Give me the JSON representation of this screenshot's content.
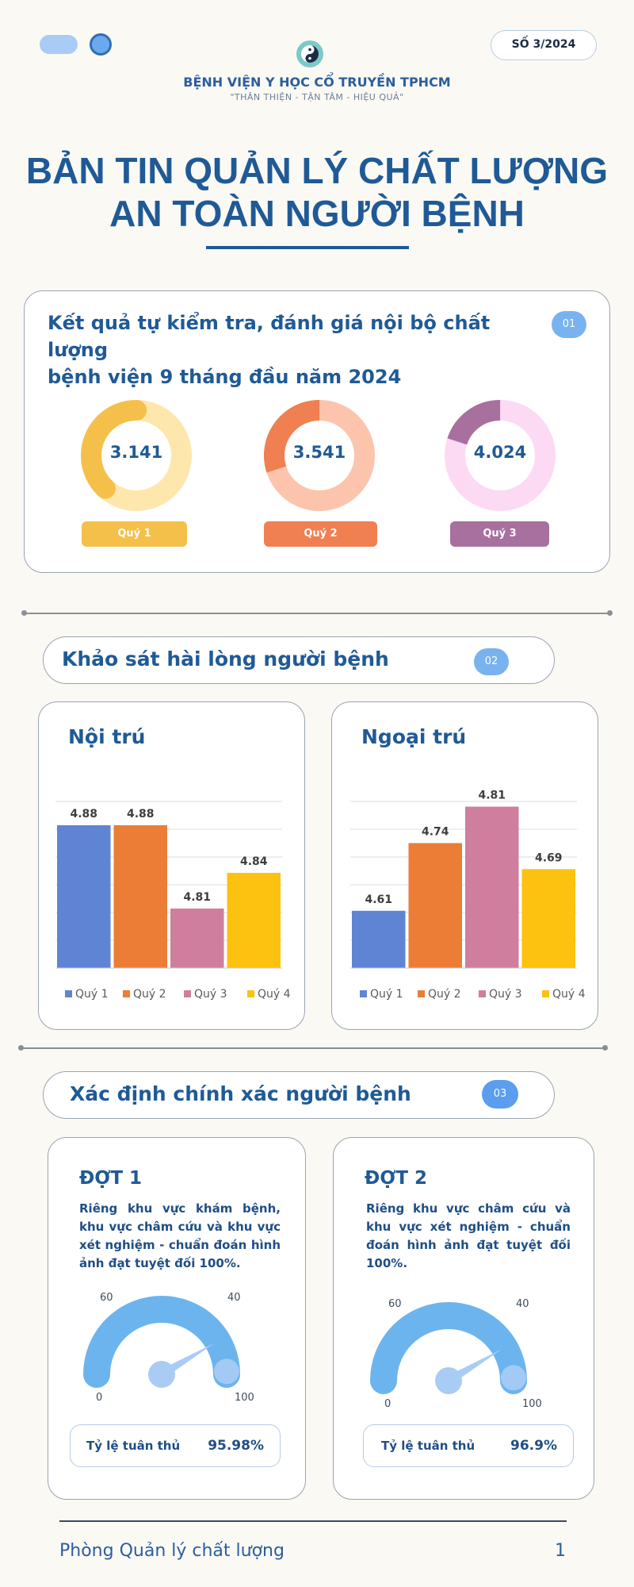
{
  "header": {
    "issue": "SỐ 3/2024",
    "hospital_name": "BỆNH VIỆN Y HỌC CỔ TRUYỀN TPHCM",
    "motto": "\"THÂN THIỆN - TẬN TÂM - HIỆU QUẢ\"",
    "title_line1": "BẢN TIN QUẢN LÝ CHẤT LƯỢNG",
    "title_line2": "AN TOÀN NGƯỜI BỆNH"
  },
  "section1": {
    "badge": "01",
    "title_line1": "Kết quả tự kiểm tra, đánh giá nội bộ chất lượng",
    "title_line2": "bệnh viện 9 tháng đầu năm 2024",
    "donuts": [
      {
        "value": "3.141",
        "label": "Quý 1",
        "fraction": 0.62,
        "color_main": "#f5c04a",
        "color_track": "#fde7ad"
      },
      {
        "value": "3.541",
        "label": "Quý 2",
        "fraction": 0.7,
        "color_main": "#f07f52",
        "color_track": "#fdc4ad"
      },
      {
        "value": "4.024",
        "label": "Quý 3",
        "fraction": 0.8,
        "color_main": "#a8709e",
        "color_track": "#fcdaf3"
      }
    ]
  },
  "section2": {
    "badge": "02",
    "title": "Khảo sát hài lòng người bệnh"
  },
  "chart_data": [
    {
      "type": "bar",
      "title": "Nội trú",
      "categories": [
        "Quý 1",
        "Quý 2",
        "Quý 3",
        "Quý 4"
      ],
      "values": [
        4.88,
        4.88,
        4.81,
        4.84
      ],
      "ylim": [
        4.76,
        4.9
      ],
      "colors": [
        "#6084d4",
        "#ec7d36",
        "#cf7e9d",
        "#fdc10f"
      ],
      "grid": true,
      "legend": "bottom"
    },
    {
      "type": "bar",
      "title": "Ngoại trú",
      "categories": [
        "Quý 1",
        "Quý 2",
        "Quý 3",
        "Quý 4"
      ],
      "values": [
        4.61,
        4.74,
        4.81,
        4.69
      ],
      "ylim": [
        4.5,
        4.82
      ],
      "colors": [
        "#6084d4",
        "#ec7d36",
        "#cf7e9d",
        "#fdc10f"
      ],
      "grid": true,
      "legend": "bottom"
    }
  ],
  "section3": {
    "badge": "03",
    "title": "Xác định chính xác người bệnh",
    "rounds": [
      {
        "title": "ĐỢT 1",
        "description": "Riêng khu vực khám bệnh, khu vực châm cứu và khu vực xét nghiệm - chuẩn đoán hình ảnh đạt tuyệt đối 100%.",
        "gauge_labels": [
          "60",
          "40",
          "0",
          "100"
        ],
        "compliance_label": "Tỷ lệ tuân thủ",
        "compliance_value": "95.98%",
        "gauge_fraction": 0.9598
      },
      {
        "title": "ĐỢT 2",
        "description": "Riêng khu vực châm cứu và khu vực xét nghiệm - chuẩn đoán hình ảnh đạt tuyệt đối 100%.",
        "gauge_labels": [
          "60",
          "40",
          "0",
          "100"
        ],
        "compliance_label": "Tỷ lệ tuân thủ",
        "compliance_value": "96.9%",
        "gauge_fraction": 0.969
      }
    ]
  },
  "footer": {
    "department": "Phòng Quản lý chất lượng",
    "page": "1"
  }
}
